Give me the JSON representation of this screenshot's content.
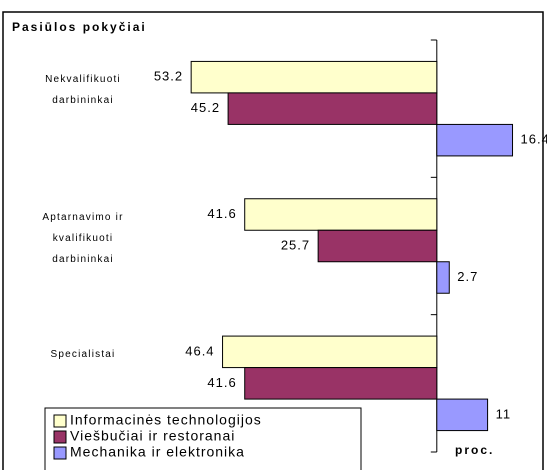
{
  "chart_data": {
    "type": "hbar",
    "title": "Pasiūlos pokyčiai",
    "x_label": "proc.",
    "categories": [
      "Nekvalifikuoti darbininkai",
      "Aptarnavimo ir kvalifikuoti darbininkai",
      "Specialistai"
    ],
    "series": [
      {
        "name": "Informacinės technologijos",
        "color": "#ffffcc",
        "values": [
          -53.2,
          -41.6,
          -46.4
        ],
        "value_labels": [
          "53.2",
          "41.6",
          "46.4"
        ]
      },
      {
        "name": "Viešbučiai ir restoranai",
        "color": "#993366",
        "values": [
          -45.2,
          -25.7,
          -41.6
        ],
        "value_labels": [
          "45.2",
          "25.7",
          "41.6"
        ]
      },
      {
        "name": "Mechanika ir elektronika",
        "color": "#9999ff",
        "values": [
          16.4,
          2.7,
          11
        ]
      }
    ],
    "xlim": [
      -92,
      23
    ],
    "legend": "bottom-left"
  }
}
